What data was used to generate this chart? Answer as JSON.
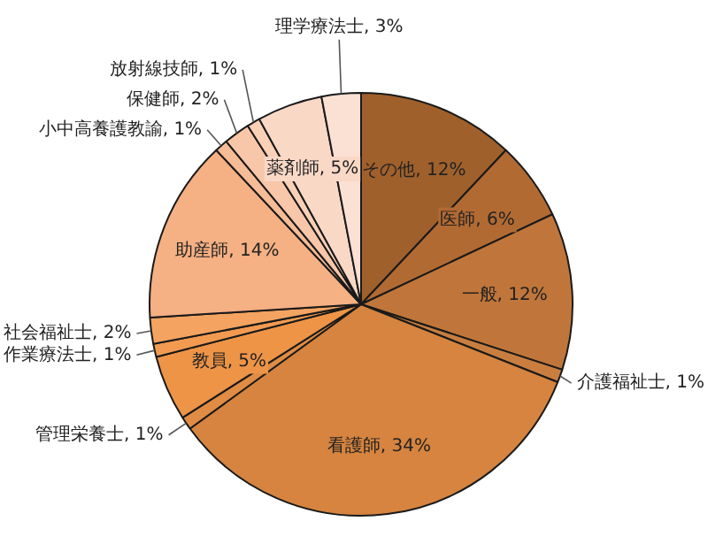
{
  "chart_data": {
    "type": "pie",
    "categories": [
      "その他",
      "医師",
      "一般",
      "介護福祉士",
      "看護師",
      "管理栄養士",
      "教員",
      "作業療法士",
      "社会福祉士",
      "助産師",
      "小中高養護教諭",
      "保健師",
      "放射線技師",
      "薬剤師",
      "理学療法士"
    ],
    "values": [
      12,
      6,
      12,
      1,
      34,
      1,
      5,
      1,
      2,
      14,
      1,
      2,
      1,
      5,
      3
    ],
    "value_labels": [
      "12%",
      "6%",
      "12%",
      "1%",
      "34%",
      "1%",
      "5%",
      "1%",
      "2%",
      "14%",
      "1%",
      "2%",
      "1%",
      "5%",
      "3%"
    ],
    "colors": [
      "#a0602c",
      "#b26a33",
      "#c0763a",
      "#c97e3f",
      "#d6843f",
      "#e08c44",
      "#ee9447",
      "#f29a50",
      "#f4a460",
      "#f5b083",
      "#f6bc96",
      "#f8c6a8",
      "#fad0b6",
      "#fad8c6",
      "#fbe0d4"
    ],
    "legend": false
  }
}
